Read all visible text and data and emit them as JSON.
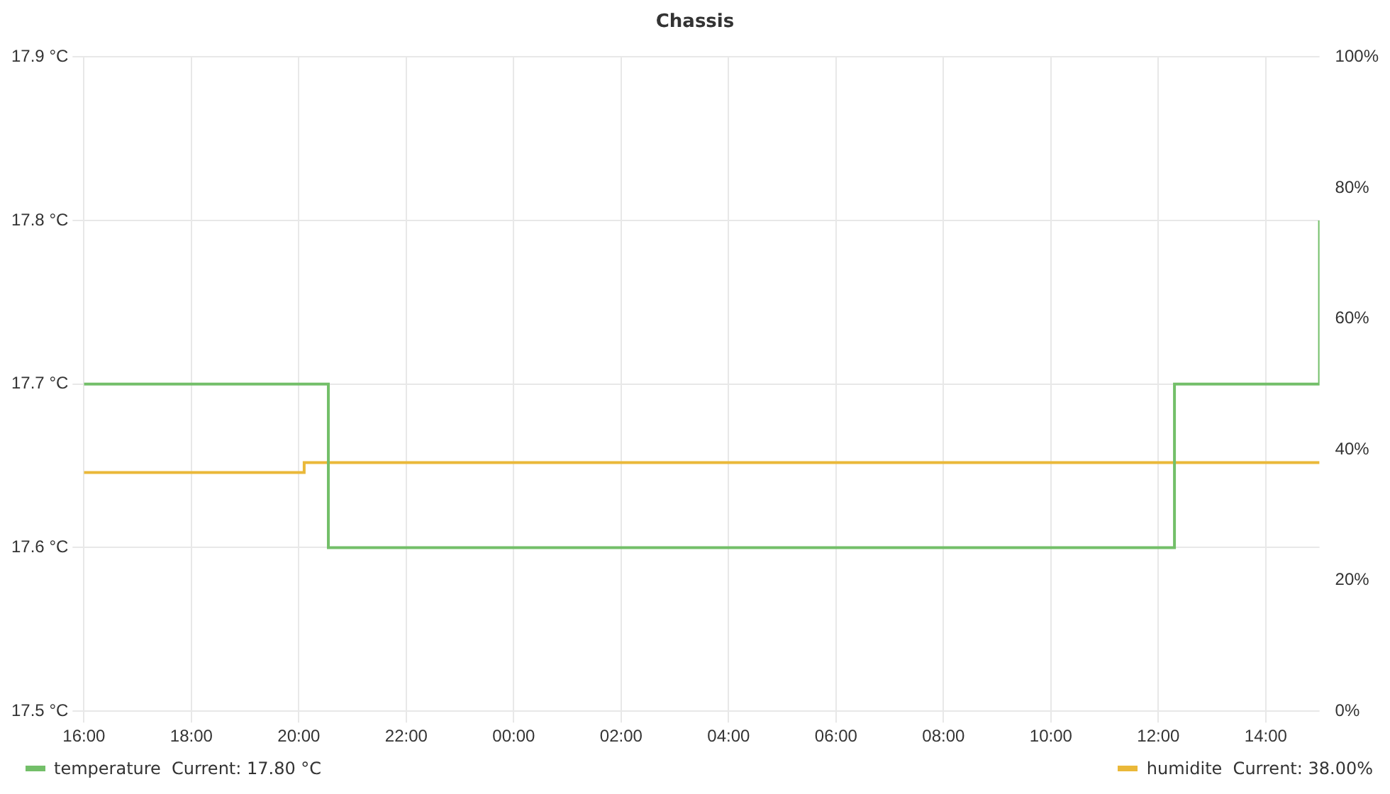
{
  "chart_data": {
    "type": "step",
    "title": "Chassis",
    "xlim": [
      "--01-01T16:00",
      "--01-02T15:00"
    ],
    "xticks": [
      {
        "value": "--01-01T16:00",
        "label": "16:00"
      },
      {
        "value": "--01-01T18:00",
        "label": "18:00"
      },
      {
        "value": "--01-01T20:00",
        "label": "20:00"
      },
      {
        "value": "--01-01T22:00",
        "label": "22:00"
      },
      {
        "value": "--01-02T00:00",
        "label": "00:00"
      },
      {
        "value": "--01-02T02:00",
        "label": "02:00"
      },
      {
        "value": "--01-02T04:00",
        "label": "04:00"
      },
      {
        "value": "--01-02T06:00",
        "label": "06:00"
      },
      {
        "value": "--01-02T08:00",
        "label": "08:00"
      },
      {
        "value": "--01-02T10:00",
        "label": "10:00"
      },
      {
        "value": "--01-02T12:00",
        "label": "12:00"
      },
      {
        "value": "--01-02T14:00",
        "label": "14:00"
      }
    ],
    "ylim": [
      17.5,
      17.9
    ],
    "yticks": [
      {
        "value": 17.5,
        "label": "17.5 °C"
      },
      {
        "value": 17.6,
        "label": "17.6 °C"
      },
      {
        "value": 17.7,
        "label": "17.7 °C"
      },
      {
        "value": 17.8,
        "label": "17.8 °C"
      },
      {
        "value": 17.9,
        "label": "17.9 °C"
      }
    ],
    "y2lim": [
      0,
      100
    ],
    "y2ticks": [
      {
        "value": 0,
        "label": "0%"
      },
      {
        "value": 20,
        "label": "20%"
      },
      {
        "value": 40,
        "label": "40%"
      },
      {
        "value": 60,
        "label": "60%"
      },
      {
        "value": 80,
        "label": "80%"
      },
      {
        "value": 100,
        "label": "100%"
      }
    ],
    "grid": true,
    "legend": "bottom",
    "series": [
      {
        "name": "temperature  Current: 17.80 °C",
        "color": "#73bf69",
        "x": [
          "--01-01T16:00",
          "--01-01T20:33",
          "--01-02T12:18",
          "--01-02T15:00"
        ],
        "values": [
          17.7,
          17.6,
          17.7,
          17.8
        ]
      },
      {
        "name": "humidite  Current: 38.00%",
        "color": "#eab839",
        "axis": "y2",
        "x": [
          "--01-01T16:00",
          "--01-01T20:06",
          "--01-02T15:00"
        ],
        "values": [
          36.5,
          38,
          38
        ]
      }
    ]
  }
}
